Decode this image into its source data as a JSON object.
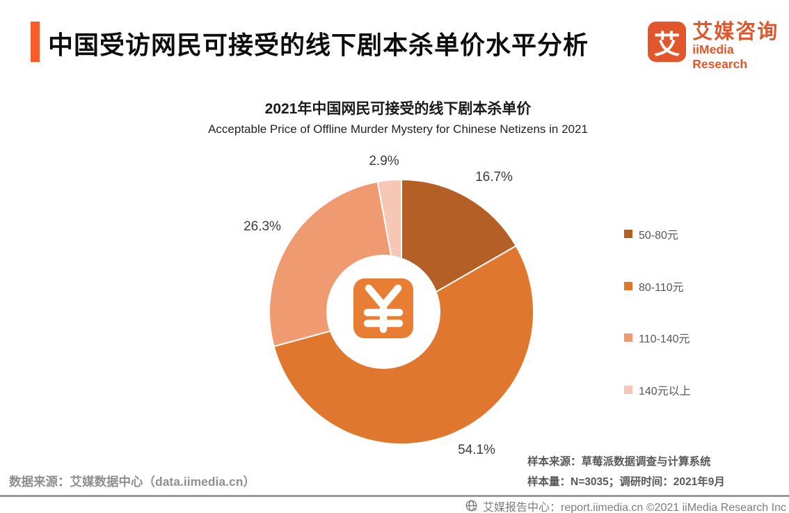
{
  "header": {
    "title": "中国受访网民可接受的线下剧本杀单价水平分析",
    "logo": {
      "glyph": "艾",
      "brand_cn": "艾媒咨询",
      "brand_en": "iiMedia Research"
    }
  },
  "colors": {
    "accent": "#f95b2b",
    "brand": "#e2562b",
    "icon_bg": "#e87e33",
    "label_text": "#3b3b3b"
  },
  "chart_data": {
    "type": "pie",
    "donut": true,
    "title": "2021年中国网民可接受的线下剧本杀单价",
    "subtitle": "Acceptable Price of Offline Murder Mystery for Chinese Netizens in 2021",
    "categories": [
      "50-80元",
      "80-110元",
      "110-140元",
      "140元以上"
    ],
    "values": [
      16.7,
      54.1,
      26.3,
      2.9
    ],
    "labels": [
      "16.7%",
      "54.1%",
      "26.3%",
      "2.9%"
    ],
    "colors": [
      "#b45f25",
      "#df772f",
      "#ef9a70",
      "#f6c7b4"
    ],
    "start_angle_deg": 0,
    "direction": "clockwise",
    "legend_position": "right",
    "center_icon": "yuan-icon"
  },
  "footnotes": {
    "data_source": "数据来源：艾媒数据中心（data.iimedia.cn）",
    "sample_source": "样本来源：草莓派数据调查与计算系统",
    "sample_size": "样本量：N=3035；调研时间：2021年9月"
  },
  "footer": {
    "text": "艾媒报告中心：report.iimedia.cn   ©2021  iiMedia Research Inc"
  }
}
